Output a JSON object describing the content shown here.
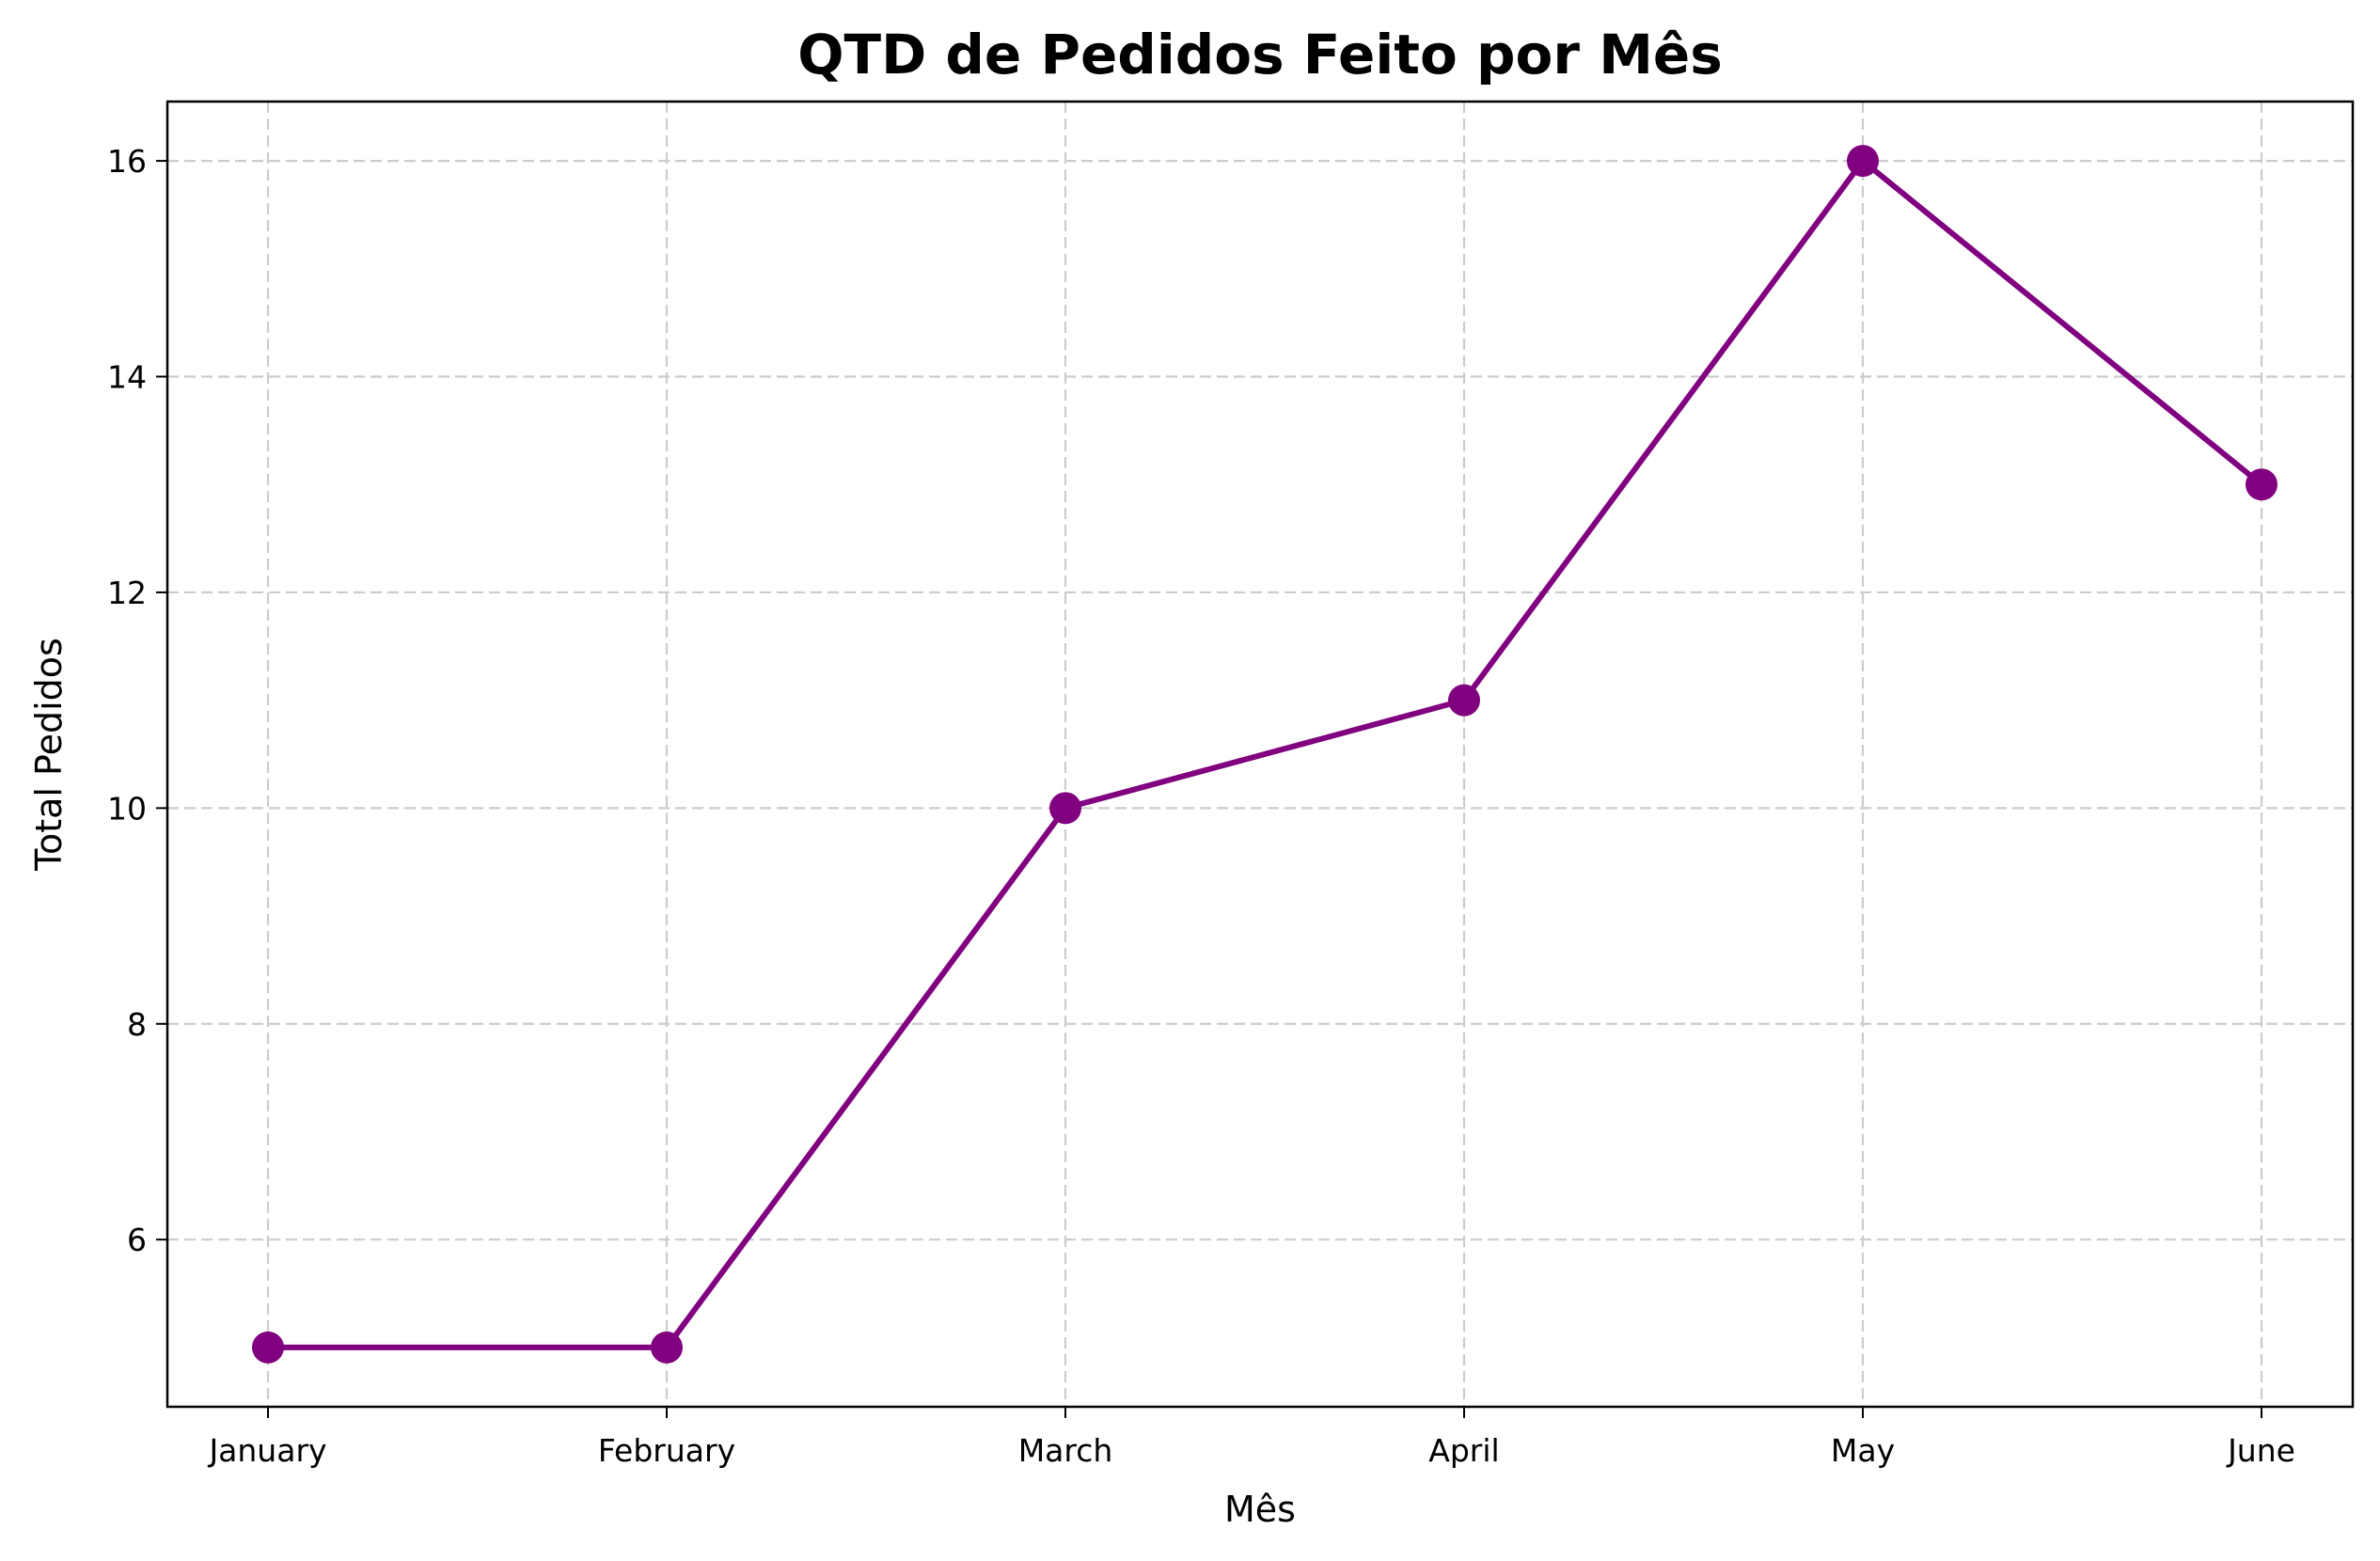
{
  "chart_data": {
    "type": "line",
    "title": "QTD de Pedidos Feito por Mês",
    "xlabel": "Mês",
    "ylabel": "Total Pedidos",
    "categories": [
      "January",
      "February",
      "March",
      "April",
      "May",
      "June"
    ],
    "series": [
      {
        "values": [
          5,
          5,
          10,
          11,
          16,
          13
        ]
      }
    ],
    "yticks": [
      6,
      8,
      10,
      12,
      14,
      16
    ],
    "ylim": [
      4.45,
      16.55
    ],
    "grid": true,
    "marker": "circle",
    "color": "#800080"
  }
}
